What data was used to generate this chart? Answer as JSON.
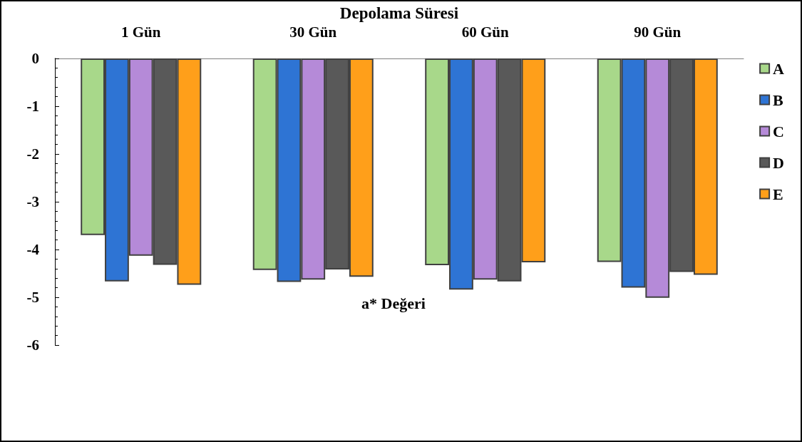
{
  "chart_data": {
    "type": "bar",
    "xlabel": "Depolama Süresi",
    "ylabel": "a* Değeri",
    "categories": [
      "1 Gün",
      "30 Gün",
      "60 Gün",
      "90 Gün"
    ],
    "series": [
      {
        "name": "A",
        "color": "#a8d88a",
        "values": [
          -3.7,
          -4.43,
          -4.33,
          -4.26
        ]
      },
      {
        "name": "B",
        "color": "#2e74d4",
        "values": [
          -4.67,
          -4.68,
          -4.84,
          -4.8
        ]
      },
      {
        "name": "C",
        "color": "#b58ad8",
        "values": [
          -4.13,
          -4.63,
          -4.63,
          -5.01
        ]
      },
      {
        "name": "D",
        "color": "#595959",
        "values": [
          -4.32,
          -4.42,
          -4.67,
          -4.47
        ]
      },
      {
        "name": "E",
        "color": "#ff9f1a",
        "values": [
          -4.74,
          -4.57,
          -4.27,
          -4.53
        ]
      }
    ],
    "ylim": [
      -6,
      0
    ],
    "yticks": [
      -6,
      -5,
      -4,
      -3,
      -2,
      -1,
      0
    ],
    "grid": false,
    "legend": "right"
  }
}
